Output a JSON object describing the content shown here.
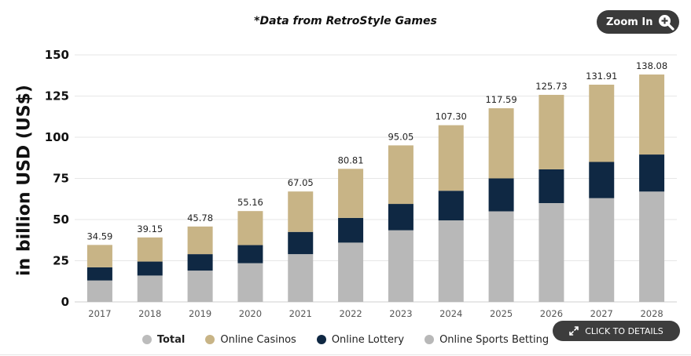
{
  "header": {
    "source_note": "*Data from RetroStyle Games",
    "zoom_label": "Zoom In"
  },
  "footer": {
    "details_label": "CLICK TO DETAILS"
  },
  "colors": {
    "casinos": "#c8b486",
    "lottery": "#0f2843",
    "sports": "#b8b8b8",
    "total": "#bcbcbc",
    "grid": "#e6e6e6",
    "button": "#3a3a3a"
  },
  "chart_data": {
    "type": "bar",
    "stacked": true,
    "categories": [
      "2017",
      "2018",
      "2019",
      "2020",
      "2021",
      "2022",
      "2023",
      "2024",
      "2025",
      "2026",
      "2027",
      "2028"
    ],
    "ylabel": "in billion USD (US$)",
    "ylim": [
      0,
      150
    ],
    "yticks": [
      "0",
      "25",
      "50",
      "75",
      "100",
      "125",
      "150"
    ],
    "grid": true,
    "legend_position": "bottom",
    "series": [
      {
        "name": "Online Sports Betting",
        "values": [
          13.0,
          16.0,
          19.0,
          23.5,
          29.0,
          36.0,
          43.5,
          49.5,
          55.0,
          60.0,
          63.0,
          67.0
        ]
      },
      {
        "name": "Online Lottery",
        "values": [
          8.0,
          8.5,
          10.0,
          11.0,
          13.5,
          15.0,
          16.0,
          18.0,
          20.0,
          20.5,
          22.0,
          22.5
        ]
      },
      {
        "name": "Online Casinos",
        "values": [
          13.59,
          14.65,
          16.78,
          20.66,
          24.55,
          29.81,
          35.55,
          39.8,
          42.59,
          45.23,
          46.91,
          48.58
        ]
      }
    ],
    "totals": {
      "name": "Total",
      "values": [
        "34.59",
        "39.15",
        "45.78",
        "55.16",
        "67.05",
        "80.81",
        "95.05",
        "107.30",
        "117.59",
        "125.73",
        "131.91",
        "138.08"
      ]
    }
  }
}
